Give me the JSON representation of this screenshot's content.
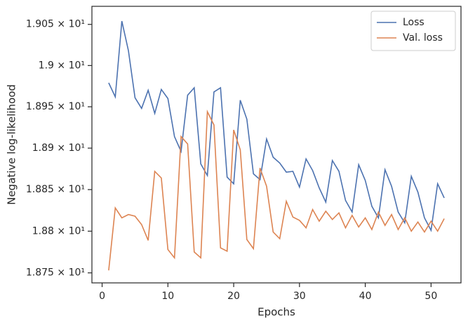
{
  "chart_data": {
    "type": "line",
    "x_label": "Epochs",
    "y_label": "Negative log-likelihood",
    "x": [
      1,
      2,
      3,
      4,
      5,
      6,
      7,
      8,
      9,
      10,
      11,
      12,
      13,
      14,
      15,
      16,
      17,
      18,
      19,
      20,
      21,
      22,
      23,
      24,
      25,
      26,
      27,
      28,
      29,
      30,
      31,
      32,
      33,
      34,
      35,
      36,
      37,
      38,
      39,
      40,
      41,
      42,
      43,
      44,
      45,
      46,
      47,
      48,
      49,
      50,
      51,
      52
    ],
    "series": [
      {
        "name": "Loss",
        "color": "#4c72b0",
        "values": [
          18.979,
          18.962,
          19.054,
          19.018,
          18.961,
          18.948,
          18.97,
          18.942,
          18.971,
          18.96,
          18.914,
          18.896,
          18.964,
          18.973,
          18.881,
          18.867,
          18.968,
          18.973,
          18.865,
          18.857,
          18.958,
          18.935,
          18.869,
          18.862,
          18.911,
          18.889,
          18.882,
          18.871,
          18.872,
          18.853,
          18.887,
          18.873,
          18.852,
          18.835,
          18.885,
          18.872,
          18.837,
          18.823,
          18.88,
          18.861,
          18.83,
          18.816,
          18.874,
          18.854,
          18.823,
          18.81,
          18.866,
          18.847,
          18.816,
          18.801,
          18.857,
          18.84
        ]
      },
      {
        "name": "Val. loss",
        "color": "#dd8452",
        "values": [
          18.753,
          18.828,
          18.816,
          18.82,
          18.818,
          18.808,
          18.789,
          18.872,
          18.864,
          18.778,
          18.768,
          18.914,
          18.905,
          18.775,
          18.768,
          18.944,
          18.928,
          18.78,
          18.776,
          18.922,
          18.898,
          18.79,
          18.779,
          18.876,
          18.854,
          18.799,
          18.791,
          18.836,
          18.817,
          18.813,
          18.804,
          18.826,
          18.812,
          18.824,
          18.814,
          18.822,
          18.804,
          18.819,
          18.805,
          18.816,
          18.802,
          18.823,
          18.807,
          18.82,
          18.802,
          18.816,
          18.8,
          18.811,
          18.799,
          18.812,
          18.8,
          18.815
        ]
      }
    ],
    "xlim": [
      -1.55,
      54.55
    ],
    "xticks": [
      0,
      10,
      20,
      30,
      40,
      50
    ],
    "ylim": [
      18.738,
      19.072
    ],
    "y_scale": "log",
    "yticks": [
      {
        "value": 18.75,
        "label": "1.875 × 10¹"
      },
      {
        "value": 18.8,
        "label": "1.88 × 10¹"
      },
      {
        "value": 18.85,
        "label": "1.885 × 10¹"
      },
      {
        "value": 18.9,
        "label": "1.89 × 10¹"
      },
      {
        "value": 18.95,
        "label": "1.895 × 10¹"
      },
      {
        "value": 19.0,
        "label": "1.9 × 10¹"
      },
      {
        "value": 19.05,
        "label": "1.905 × 10¹"
      }
    ],
    "legend": "upper right"
  }
}
